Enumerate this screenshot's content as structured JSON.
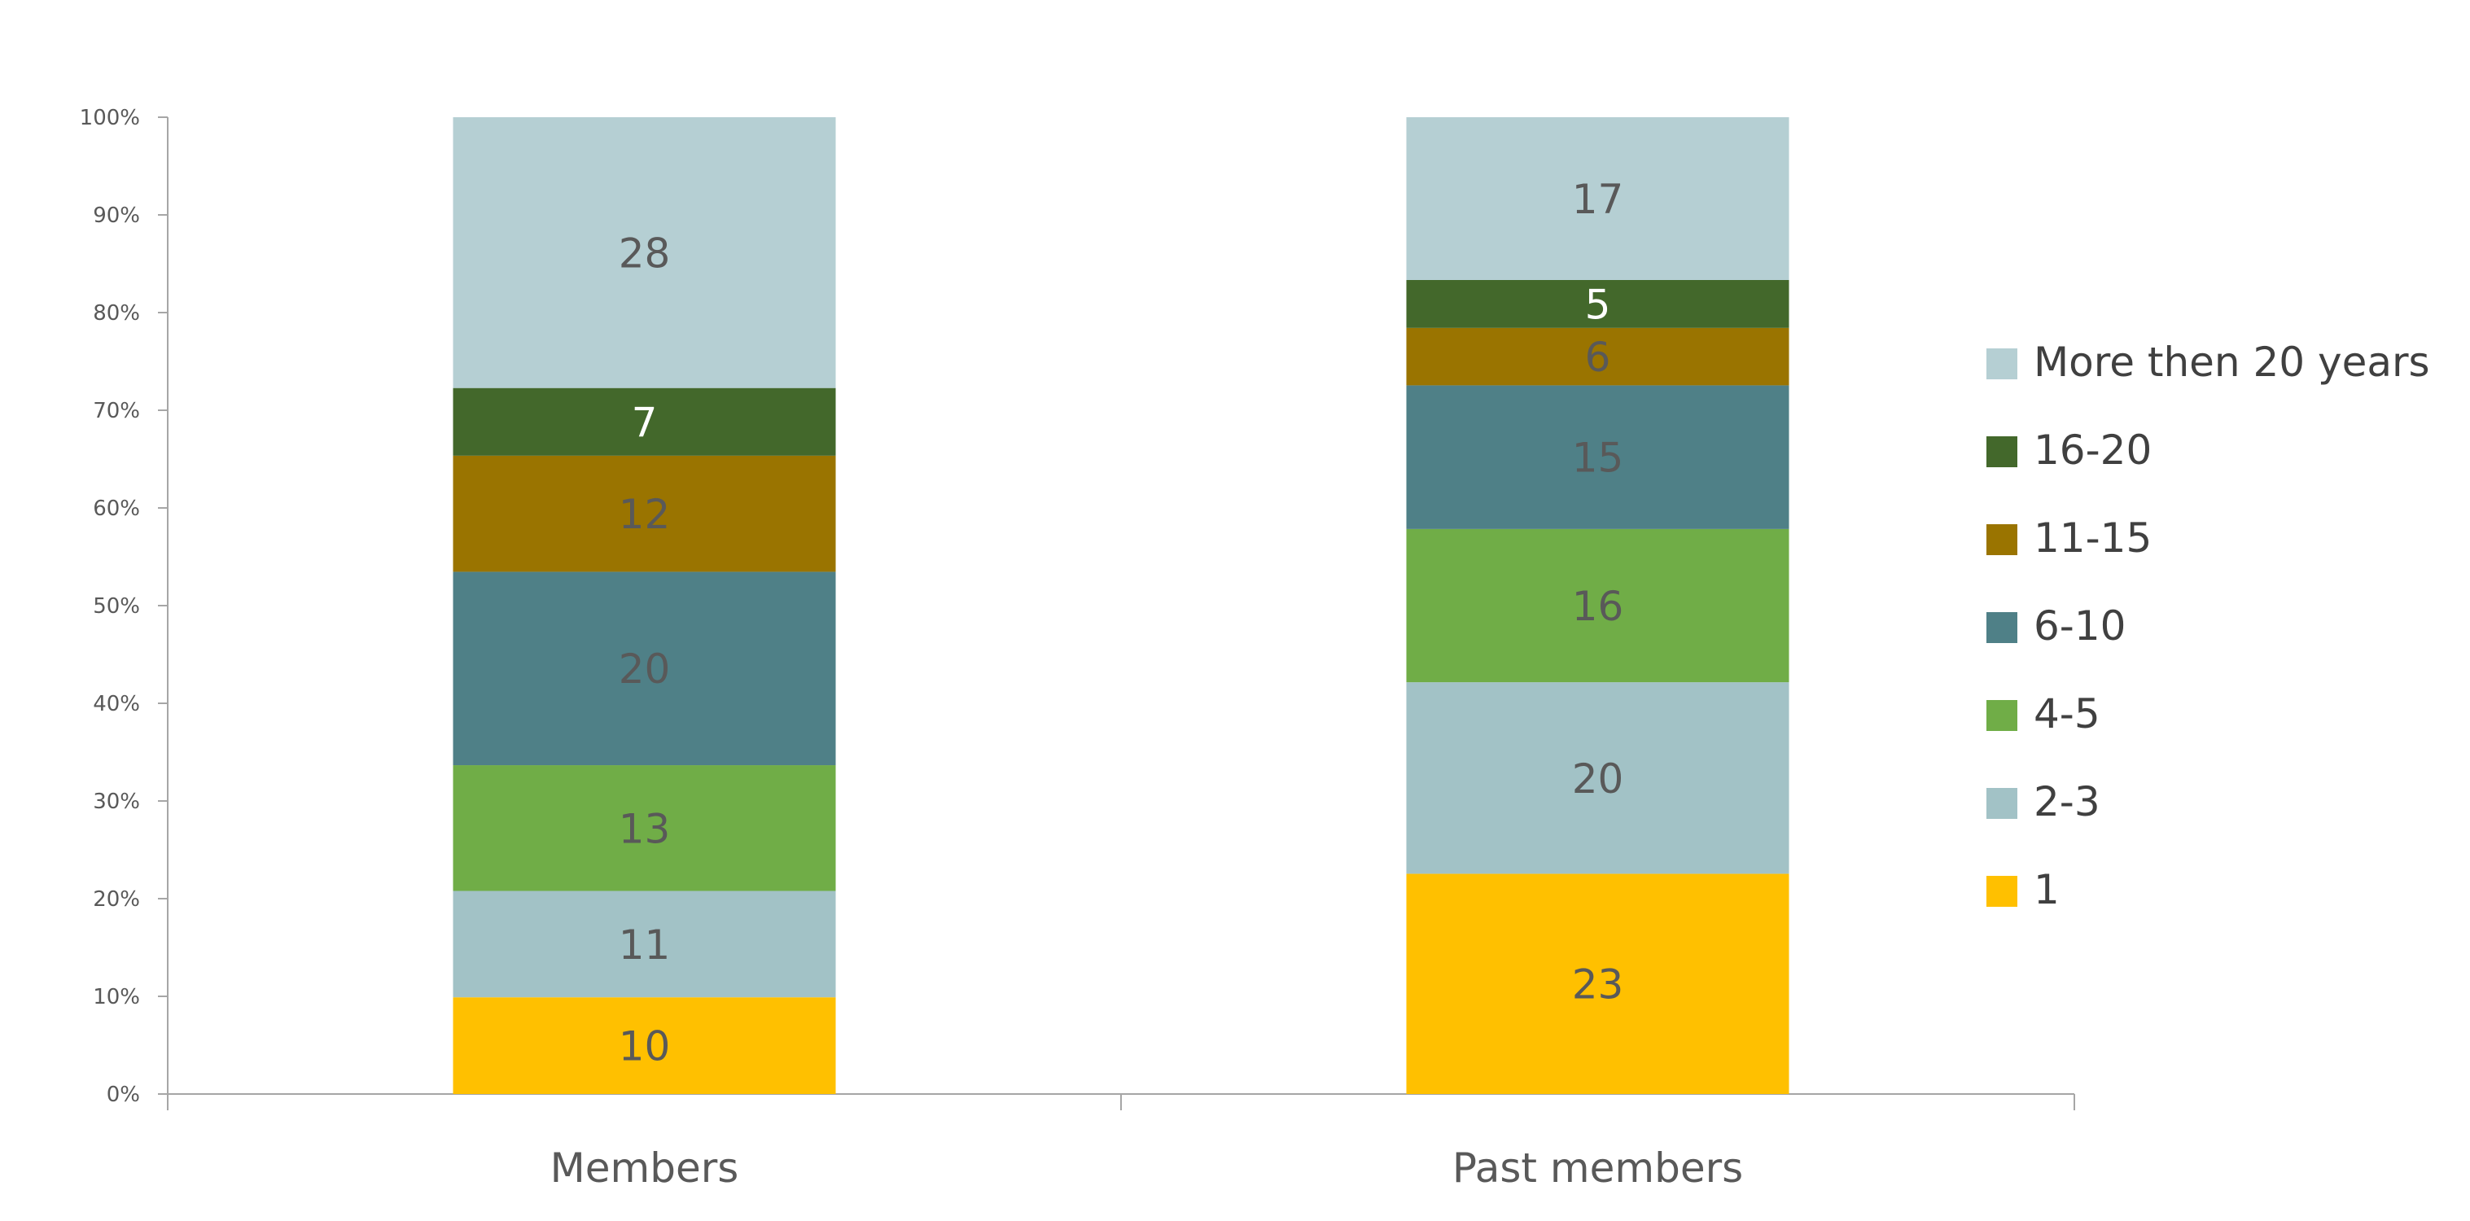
{
  "chart_data": {
    "type": "bar",
    "stacked": true,
    "percent_stacked": true,
    "categories": [
      "Members",
      "Past members"
    ],
    "series": [
      {
        "name": "1",
        "values": [
          10,
          23
        ],
        "color": "#FFC000",
        "label_color": "#595959"
      },
      {
        "name": "2-3",
        "values": [
          11,
          20
        ],
        "color": "#A2C2C6",
        "label_color": "#595959"
      },
      {
        "name": "4-5",
        "values": [
          13,
          16
        ],
        "color": "#70AD47",
        "label_color": "#595959"
      },
      {
        "name": "6-10",
        "values": [
          20,
          15
        ],
        "color": "#4F8087",
        "label_color": "#595959"
      },
      {
        "name": "11-15",
        "values": [
          12,
          6
        ],
        "color": "#9A7400",
        "label_color": "#595959"
      },
      {
        "name": "16-20",
        "values": [
          7,
          5
        ],
        "color": "#43682B",
        "label_color": "#FFFFFF"
      },
      {
        "name": "More then 20 years",
        "values": [
          28,
          17
        ],
        "color": "#B5CFD3",
        "label_color": "#595959"
      }
    ],
    "y_ticks": [
      "0%",
      "10%",
      "20%",
      "30%",
      "40%",
      "50%",
      "60%",
      "70%",
      "80%",
      "90%",
      "100%"
    ],
    "ylim": [
      0,
      100
    ],
    "title": "",
    "xlabel": "",
    "ylabel": "",
    "grid": false,
    "legend_position": "right"
  }
}
